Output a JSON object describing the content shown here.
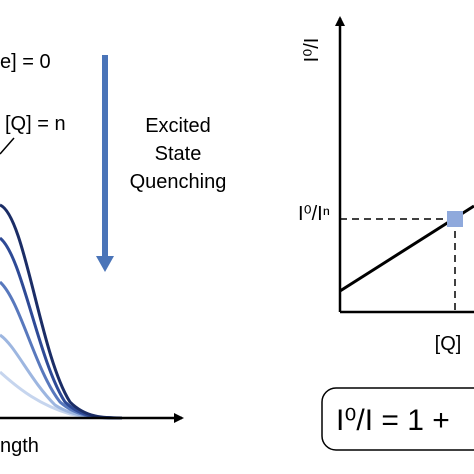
{
  "labels": {
    "zero": "e] = 0",
    "n": "[Q] = n",
    "arrow_lines": [
      "Excited",
      "State",
      "Quenching"
    ],
    "x_axis_left": "ngth"
  },
  "plot": {
    "y_axis": "I⁰/I",
    "y_mark": "I⁰/Iⁿ",
    "x_mark": "[Q]"
  },
  "equation": "I⁰/I = 1 +"
}
